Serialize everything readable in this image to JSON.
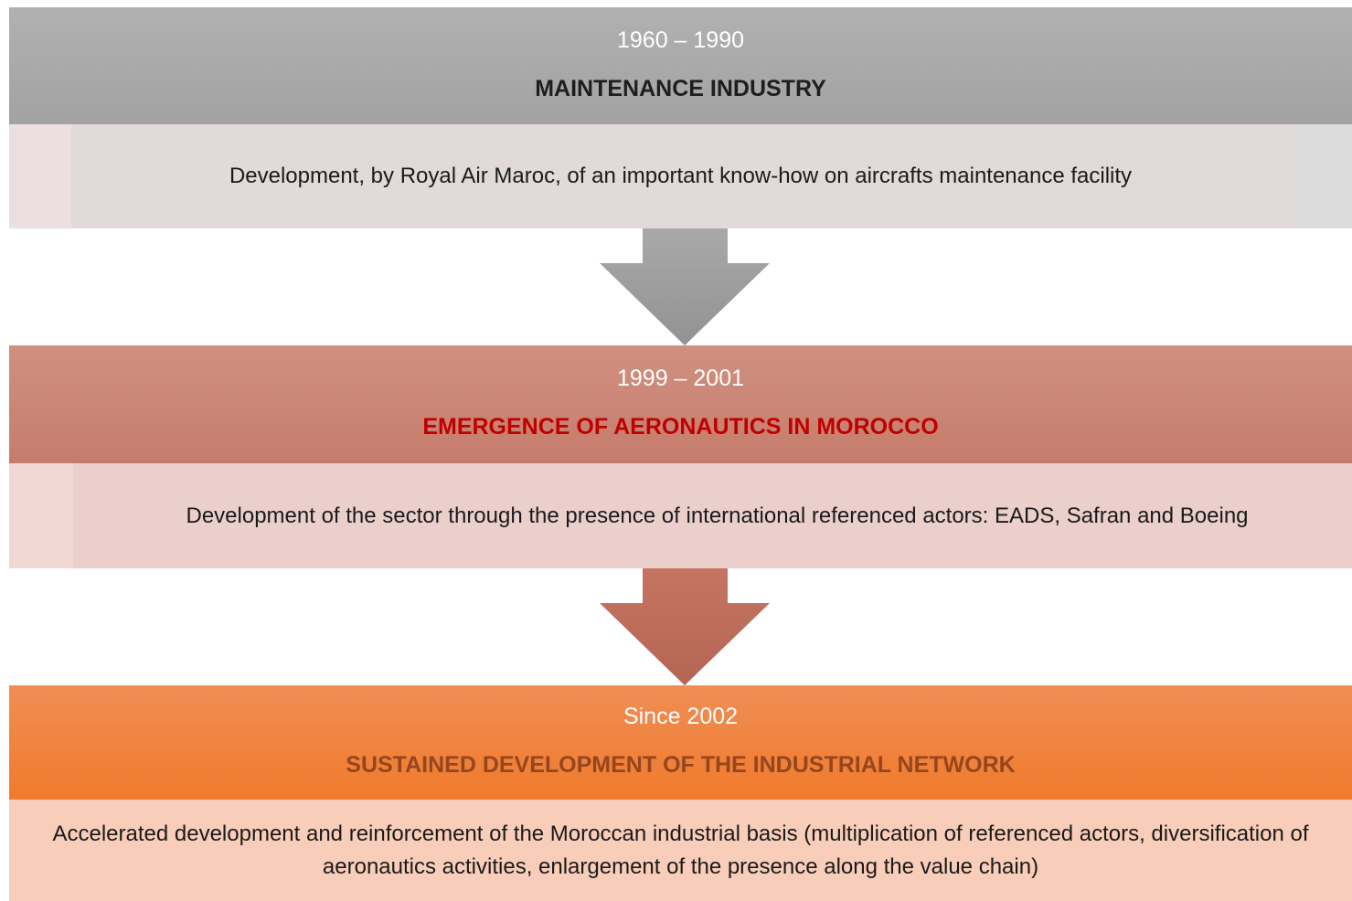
{
  "stages": [
    {
      "period": "1960 – 1990",
      "title": "MAINTENANCE INDUSTRY",
      "description": "Development, by Royal Air Maroc, of an important know-how on aircrafts maintenance facility"
    },
    {
      "period": "1999 – 2001",
      "title": "EMERGENCE OF AERONAUTICS IN MOROCCO",
      "description": "Development of the sector through the presence of international referenced actors: EADS, Safran and Boeing"
    },
    {
      "period": "Since 2002",
      "title": "SUSTAINED DEVELOPMENT OF THE INDUSTRIAL NETWORK",
      "description": "Accelerated development and reinforcement of the Moroccan industrial basis (multiplication of referenced actors, diversification of aeronautics activities, enlargement of the presence along the value chain)"
    }
  ]
}
